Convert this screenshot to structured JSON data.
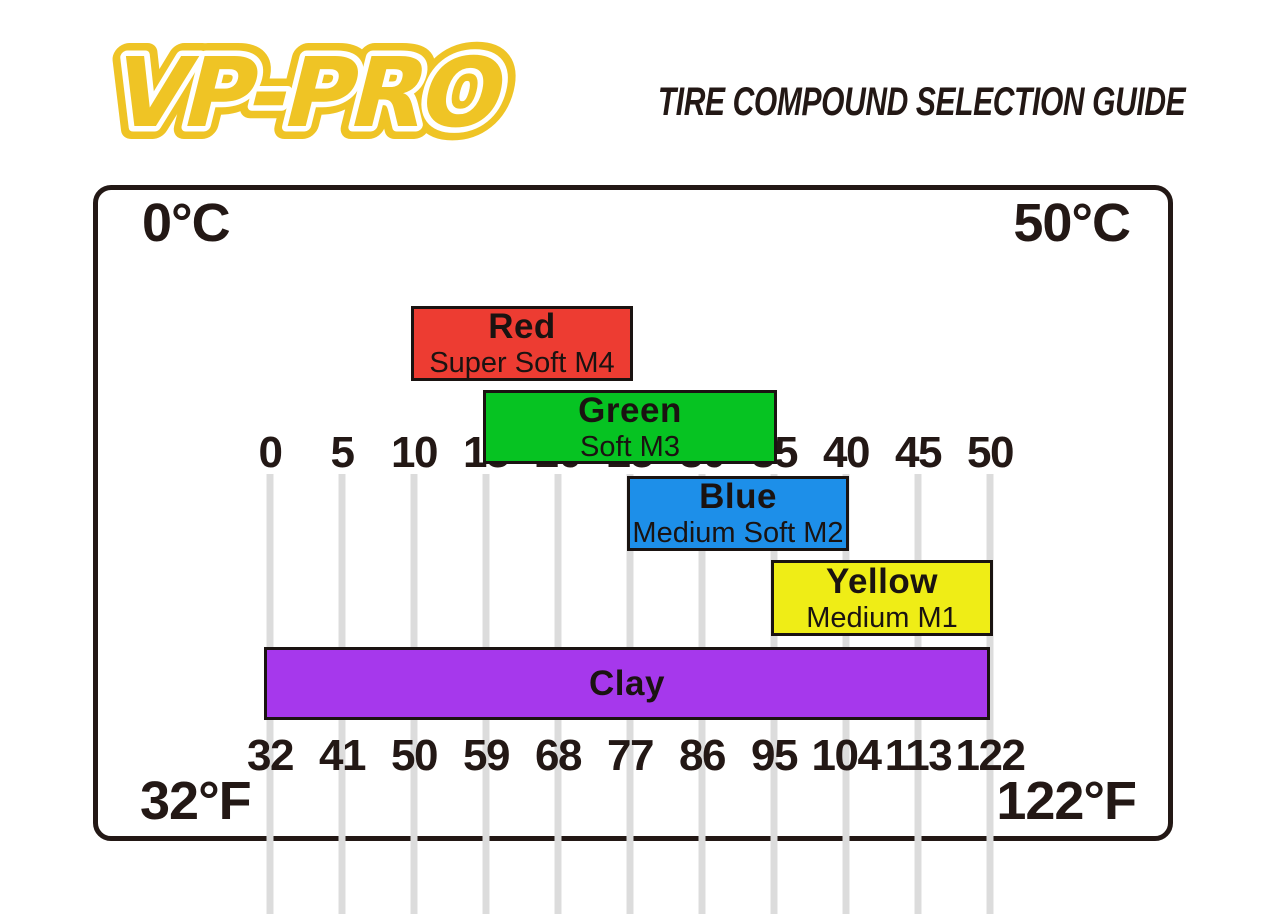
{
  "header": {
    "logo_text": "VP-PRO",
    "title": "TIRE COMPOUND SELECTION GUIDE"
  },
  "chart_data": {
    "type": "bar",
    "subtype": "horizontal-temperature-range",
    "title": "TIRE COMPOUND SELECTION GUIDE",
    "grid": true,
    "gridline_color": "#dcdcdc",
    "axis_top": {
      "unit": "°C",
      "label_left": "0°C",
      "label_right": "50°C",
      "range": [
        0,
        50
      ],
      "ticks": [
        0,
        5,
        10,
        15,
        20,
        25,
        30,
        35,
        40,
        45,
        50
      ]
    },
    "axis_bottom": {
      "unit": "°F",
      "label_left": "32°F",
      "label_right": "122°F",
      "range": [
        32,
        122
      ],
      "ticks": [
        32,
        41,
        50,
        59,
        68,
        77,
        86,
        95,
        104,
        113,
        122
      ]
    },
    "series": [
      {
        "name": "Red",
        "compound": "Super Soft M4",
        "color": "#ed3c32",
        "min_c": 10,
        "max_c": 25,
        "min_f": 50,
        "max_f": 77
      },
      {
        "name": "Green",
        "compound": "Soft M3",
        "color": "#06c322",
        "min_c": 15,
        "max_c": 35,
        "min_f": 59,
        "max_f": 95
      },
      {
        "name": "Blue",
        "compound": "Medium Soft M2",
        "color": "#1d8fe9",
        "min_c": 25,
        "max_c": 40,
        "min_f": 77,
        "max_f": 104
      },
      {
        "name": "Yellow",
        "compound": "Medium M1",
        "color": "#efed16",
        "min_c": 35,
        "max_c": 50,
        "min_f": 95,
        "max_f": 122
      },
      {
        "name": "Clay",
        "compound": "",
        "color": "#a638ec",
        "min_c": 0,
        "max_c": 50,
        "min_f": 32,
        "max_f": 122
      }
    ],
    "colors": {
      "text": "#231815",
      "border": "#231815",
      "logo_yellow": "#efc425"
    }
  }
}
